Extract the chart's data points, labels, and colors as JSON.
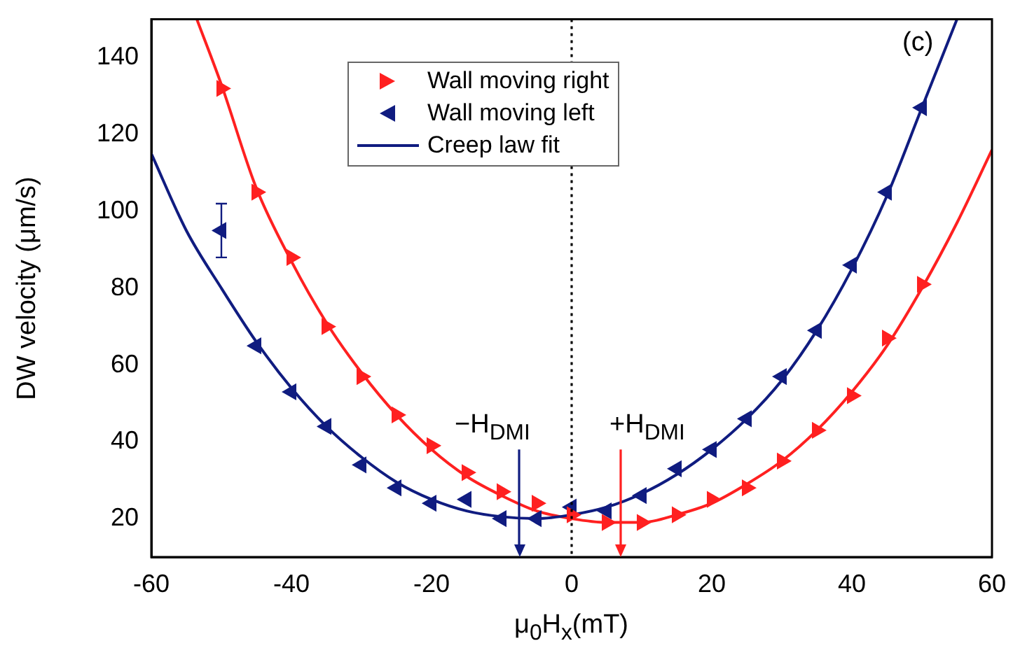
{
  "chart_data": {
    "type": "scatter",
    "xlabel": "μ$_{0}$H$_{x}$(mT)",
    "ylabel": "DW velocity (μm/s)",
    "xlim": [
      -60,
      60
    ],
    "xticks": [
      -60,
      -40,
      -20,
      0,
      20,
      40,
      60
    ],
    "ylim": [
      10,
      150
    ],
    "yticks": [
      20,
      40,
      60,
      80,
      100,
      120,
      140
    ],
    "grid": false,
    "legend": "top",
    "marker": "triangle",
    "series": [
      {
        "name": "Wall moving right",
        "color": "#ff2020",
        "x": [
          -50,
          -45,
          -40,
          -35,
          -30,
          -25,
          -20,
          -15,
          -10,
          -5,
          0,
          5,
          10,
          15,
          20,
          25,
          30,
          35,
          40,
          45,
          50
        ],
        "values": [
          132,
          105,
          88,
          70,
          57,
          47,
          39,
          32,
          27,
          24,
          21,
          19,
          19,
          21,
          25,
          28,
          35,
          43,
          52,
          67,
          81
        ]
      },
      {
        "name": "Wall moving left",
        "color": "#101c80",
        "x": [
          -50,
          -45,
          -40,
          -35,
          -30,
          -25,
          -20,
          -15,
          -10,
          -5,
          0,
          5,
          10,
          15,
          20,
          25,
          30,
          35,
          40,
          45,
          50
        ],
        "values": [
          95,
          65,
          53,
          44,
          34,
          28,
          24,
          25,
          20,
          20,
          23,
          22,
          26,
          33,
          38,
          46,
          57,
          69,
          86,
          105,
          127
        ],
        "errors": [
          [
            88,
            102
          ],
          null,
          null,
          null,
          null,
          null,
          null,
          null,
          null,
          null,
          null,
          null,
          null,
          null,
          null,
          null,
          null,
          null,
          null,
          null,
          null
        ]
      },
      {
        "name": "Creep law fit",
        "type": "line",
        "color": "#101c80",
        "marker": "none",
        "x": [
          -60,
          -55,
          -50,
          -45,
          -40,
          -35,
          -30,
          -25,
          -20,
          -15,
          -10,
          -5,
          0,
          5,
          10,
          15,
          20,
          25,
          30,
          35,
          40,
          45,
          50,
          55
        ],
        "values": [
          115,
          95,
          80,
          66,
          54,
          44,
          36,
          29.5,
          25,
          22,
          20.5,
          20,
          21,
          23,
          26.5,
          31.5,
          38,
          46,
          56,
          69,
          85,
          104,
          127,
          150
        ]
      },
      {
        "type": "line",
        "color": "#ff2020",
        "marker": "none",
        "x": [
          -53.5,
          -50,
          -45,
          -40,
          -35,
          -30,
          -25,
          -20,
          -15,
          -10,
          -5,
          0,
          5,
          10,
          15,
          20,
          25,
          30,
          35,
          40,
          45,
          50,
          55,
          60
        ],
        "values": [
          150,
          133,
          106,
          87,
          71,
          58,
          47,
          38,
          31,
          26,
          22,
          20,
          19,
          19,
          21,
          24,
          29,
          35,
          43,
          53,
          65,
          80,
          97,
          116
        ]
      }
    ],
    "ref_lines": [
      {
        "axis": "x",
        "value": 0,
        "color": "#000000",
        "line_style": "dotted"
      },
      {
        "axis": "x",
        "value": -7.5,
        "label": "−H$_{DMI}$",
        "color": "#101c80"
      },
      {
        "axis": "x",
        "value": 7,
        "label": "+H$_{DMI}$",
        "color": "#ff2020"
      }
    ],
    "annotations": [
      "(c)"
    ]
  }
}
